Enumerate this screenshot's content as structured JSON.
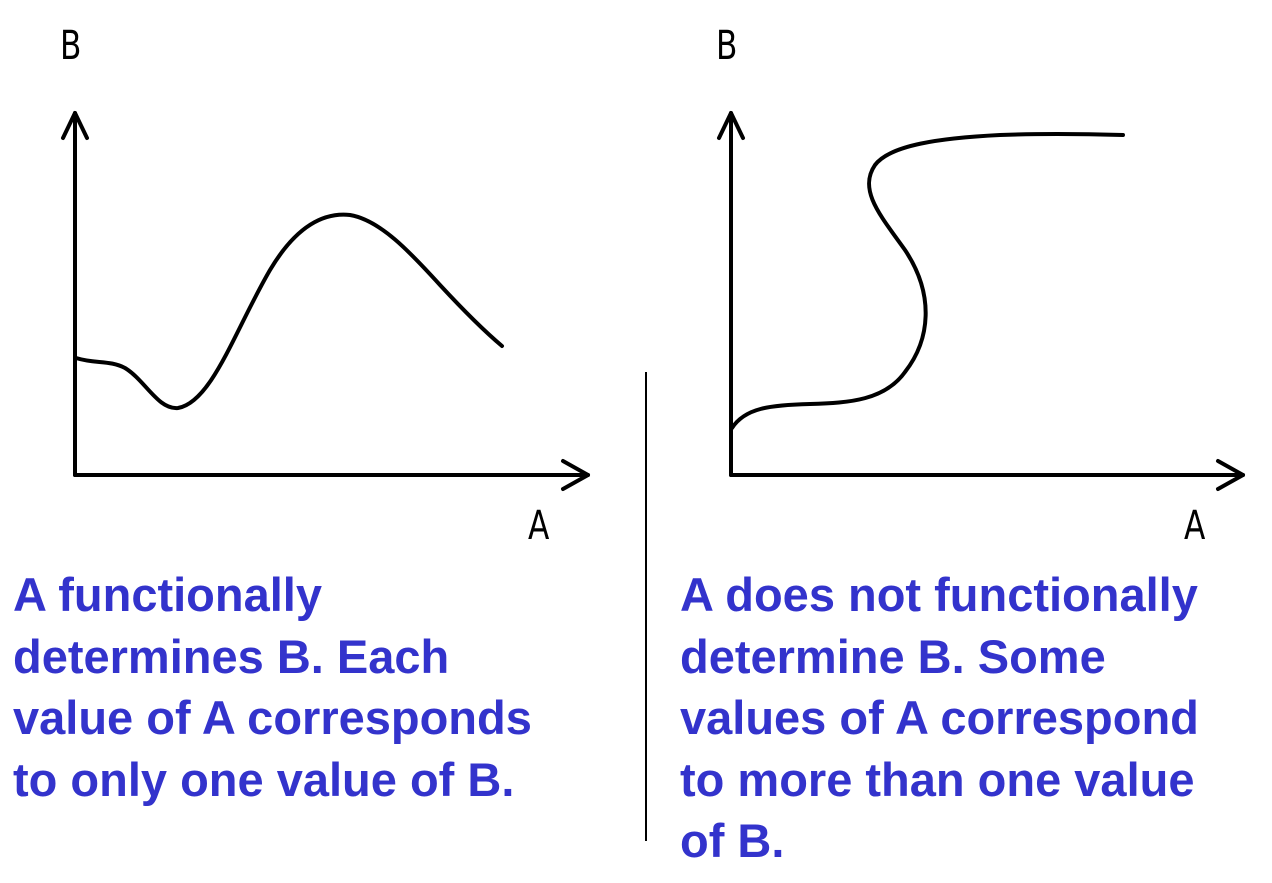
{
  "colors": {
    "caption_text": "#3333CC",
    "axes": "#000000",
    "curves": "#000000"
  },
  "left_panel": {
    "y_axis_label": "B",
    "x_axis_label": "A",
    "caption_lines": [
      "A functionally",
      "determines B. Each",
      "value of A corresponds",
      "to only one value of B."
    ]
  },
  "right_panel": {
    "y_axis_label": "B",
    "x_axis_label": "A",
    "caption_lines": [
      "A does not functionally",
      "determine B. Some",
      "values of A correspond",
      "to more than one value",
      "of B."
    ]
  }
}
